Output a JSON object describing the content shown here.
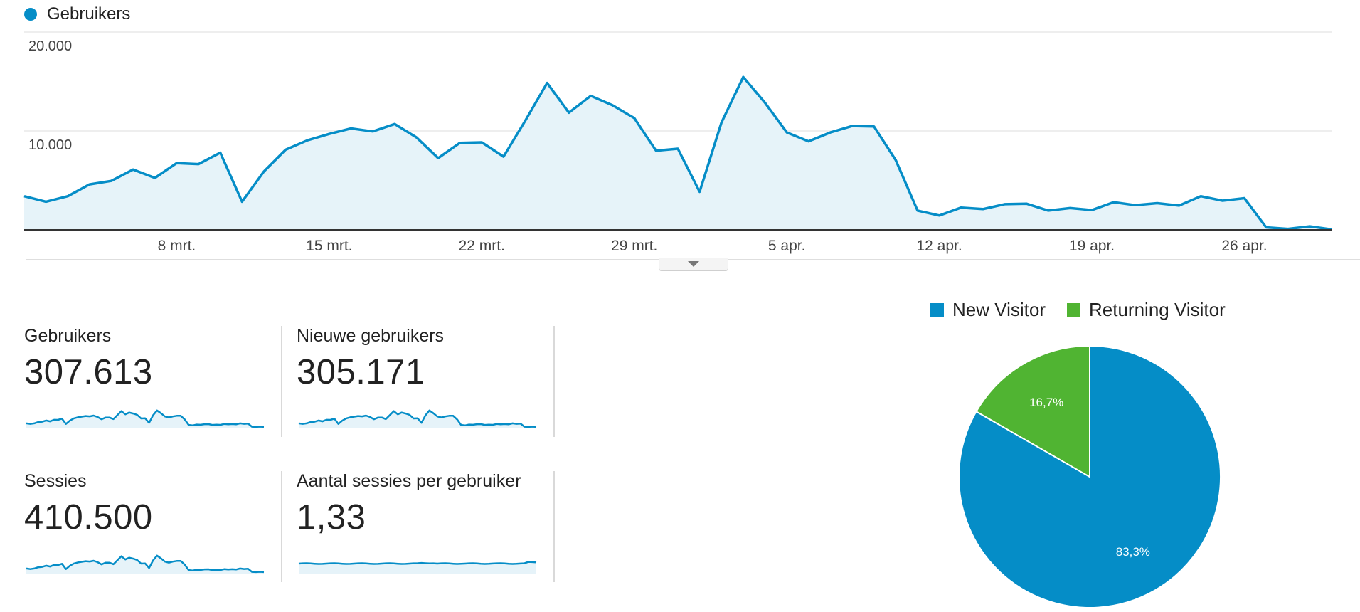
{
  "legend": {
    "series_label": "Gebruikers",
    "series_color": "#058dc7",
    "dot_icon": "circle-dot-icon"
  },
  "chart_data": {
    "type": "area",
    "title": "",
    "series": [
      {
        "name": "Gebruikers",
        "values": [
          3400,
          2850,
          3400,
          4600,
          4950,
          6100,
          5250,
          6750,
          6650,
          7800,
          2850,
          5900,
          8100,
          9050,
          9700,
          10250,
          9950,
          10700,
          9350,
          7250,
          8800,
          8850,
          7400,
          11050,
          14850,
          11850,
          13550,
          12600,
          11300,
          8000,
          8200,
          3850,
          10850,
          15450,
          12850,
          9850,
          8950,
          9850,
          10500,
          10450,
          7050,
          1950,
          1450,
          2250,
          2100,
          2600,
          2650,
          1950,
          2200,
          2000,
          2800,
          2500,
          2700,
          2450,
          3400,
          2950,
          3200,
          250,
          100,
          350,
          50
        ]
      }
    ],
    "ylim": [
      0,
      20000
    ],
    "y_ticks": [
      "20.000",
      "10.000"
    ],
    "x_tick_labels": [
      "8 mrt.",
      "15 mrt.",
      "22 mrt.",
      "29 mrt.",
      "5 apr.",
      "12 apr.",
      "19 apr.",
      "26 apr."
    ],
    "x_tick_indices": [
      7,
      14,
      21,
      28,
      35,
      42,
      49,
      56
    ],
    "grid": true,
    "colors": {
      "line": "#058dc7",
      "fill": "#e6f3f9"
    }
  },
  "expander": {
    "icon": "chevron-down-icon"
  },
  "metrics": [
    {
      "label": "Gebruikers",
      "value": "307.613",
      "spark": "users"
    },
    {
      "label": "Nieuwe gebruikers",
      "value": "305.171",
      "spark": "users"
    },
    {
      "label": "Sessies",
      "value": "410.500",
      "spark": "users"
    },
    {
      "label": "Aantal sessies per gebruiker",
      "value": "1,33",
      "spark": "flat"
    }
  ],
  "pie": {
    "legend": [
      {
        "label": "New Visitor",
        "color": "#058dc7"
      },
      {
        "label": "Returning Visitor",
        "color": "#50b432"
      }
    ],
    "slices": [
      {
        "name": "New Visitor",
        "percent": 83.3,
        "label": "83,3%",
        "color": "#058dc7"
      },
      {
        "name": "Returning Visitor",
        "percent": 16.7,
        "label": "16,7%",
        "color": "#50b432"
      }
    ]
  }
}
